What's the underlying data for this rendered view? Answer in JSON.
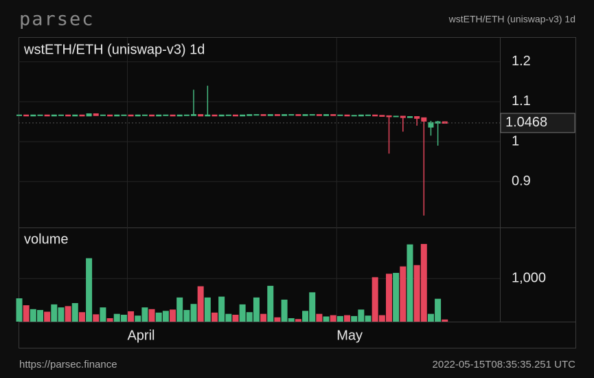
{
  "header": {
    "logo": "parsec",
    "pair": "wstETH/ETH (uniswap-v3) 1d"
  },
  "footer": {
    "url": "https://parsec.finance",
    "timestamp": "2022-05-15T08:35:35.251 UTC"
  },
  "chart_data": {
    "type": "candlestick",
    "title": "wstETH/ETH (uniswap-v3) 1d",
    "volume_label": "volume",
    "up_color": "#45b980",
    "down_color": "#e5465c",
    "open": [
      1.066,
      1.066,
      1.065,
      1.066,
      1.066,
      1.065,
      1.066,
      1.066,
      1.065,
      1.066,
      1.065,
      1.069,
      1.066,
      1.066,
      1.065,
      1.066,
      1.066,
      1.065,
      1.066,
      1.066,
      1.065,
      1.066,
      1.066,
      1.065,
      1.066,
      1.066,
      1.067,
      1.065,
      1.066,
      1.065,
      1.066,
      1.066,
      1.065,
      1.066,
      1.067,
      1.067,
      1.066,
      1.067,
      1.066,
      1.067,
      1.067,
      1.066,
      1.067,
      1.067,
      1.066,
      1.067,
      1.066,
      1.066,
      1.065,
      1.065,
      1.066,
      1.066,
      1.065,
      1.064,
      1.063,
      1.063,
      1.061,
      1.062,
      1.059,
      1.037,
      1.047,
      1.049
    ],
    "high": [
      1.067,
      1.067,
      1.067,
      1.067,
      1.067,
      1.067,
      1.067,
      1.067,
      1.067,
      1.067,
      1.07,
      1.07,
      1.067,
      1.067,
      1.067,
      1.067,
      1.067,
      1.067,
      1.067,
      1.067,
      1.067,
      1.067,
      1.067,
      1.067,
      1.067,
      1.13,
      1.068,
      1.14,
      1.067,
      1.067,
      1.067,
      1.067,
      1.067,
      1.068,
      1.068,
      1.068,
      1.068,
      1.068,
      1.068,
      1.068,
      1.068,
      1.068,
      1.068,
      1.068,
      1.068,
      1.068,
      1.067,
      1.067,
      1.066,
      1.067,
      1.067,
      1.067,
      1.066,
      1.065,
      1.064,
      1.064,
      1.063,
      1.063,
      1.06,
      1.052,
      1.052,
      1.05
    ],
    "low": [
      1.065,
      1.064,
      1.064,
      1.065,
      1.064,
      1.064,
      1.065,
      1.064,
      1.064,
      1.064,
      1.064,
      1.065,
      1.065,
      1.064,
      1.064,
      1.065,
      1.064,
      1.064,
      1.065,
      1.064,
      1.064,
      1.065,
      1.064,
      1.064,
      1.065,
      1.065,
      1.064,
      1.064,
      1.064,
      1.064,
      1.065,
      1.064,
      1.064,
      1.065,
      1.066,
      1.065,
      1.065,
      1.065,
      1.065,
      1.066,
      1.065,
      1.065,
      1.066,
      1.065,
      1.065,
      1.065,
      1.065,
      1.064,
      1.064,
      1.064,
      1.065,
      1.064,
      1.063,
      0.97,
      1.062,
      1.025,
      1.06,
      1.04,
      0.815,
      1.015,
      0.99,
      1.045
    ],
    "close": [
      1.066,
      1.065,
      1.066,
      1.066,
      1.065,
      1.066,
      1.066,
      1.065,
      1.066,
      1.065,
      1.069,
      1.066,
      1.066,
      1.065,
      1.066,
      1.066,
      1.065,
      1.066,
      1.066,
      1.065,
      1.066,
      1.066,
      1.065,
      1.066,
      1.066,
      1.067,
      1.065,
      1.066,
      1.065,
      1.066,
      1.066,
      1.065,
      1.066,
      1.067,
      1.067,
      1.066,
      1.067,
      1.066,
      1.067,
      1.067,
      1.066,
      1.067,
      1.067,
      1.066,
      1.067,
      1.066,
      1.066,
      1.065,
      1.065,
      1.066,
      1.066,
      1.065,
      1.064,
      1.063,
      1.063,
      1.061,
      1.062,
      1.059,
      1.052,
      1.047,
      1.049,
      1.0468
    ],
    "volume": [
      540,
      380,
      290,
      270,
      230,
      400,
      330,
      360,
      430,
      220,
      1470,
      170,
      330,
      80,
      180,
      160,
      240,
      140,
      330,
      290,
      210,
      250,
      280,
      560,
      270,
      410,
      820,
      560,
      210,
      580,
      180,
      160,
      400,
      220,
      560,
      180,
      830,
      100,
      510,
      80,
      60,
      250,
      680,
      180,
      120,
      150,
      130,
      150,
      130,
      280,
      140,
      1030,
      150,
      1110,
      1130,
      1280,
      1790,
      1310,
      1800,
      180,
      530,
      50
    ],
    "last_price": 1.0468,
    "ylim": [
      0.785,
      1.26
    ],
    "yticks": [
      0.9,
      1,
      1.1,
      1.2
    ],
    "volume_ylim": [
      0,
      2150
    ],
    "volume_yticks": [
      {
        "value": 1000,
        "label": "1,000"
      }
    ],
    "xticks": [
      {
        "value": 15.5,
        "label": "April"
      },
      {
        "value": 45.5,
        "label": "May"
      }
    ],
    "grid": true
  }
}
